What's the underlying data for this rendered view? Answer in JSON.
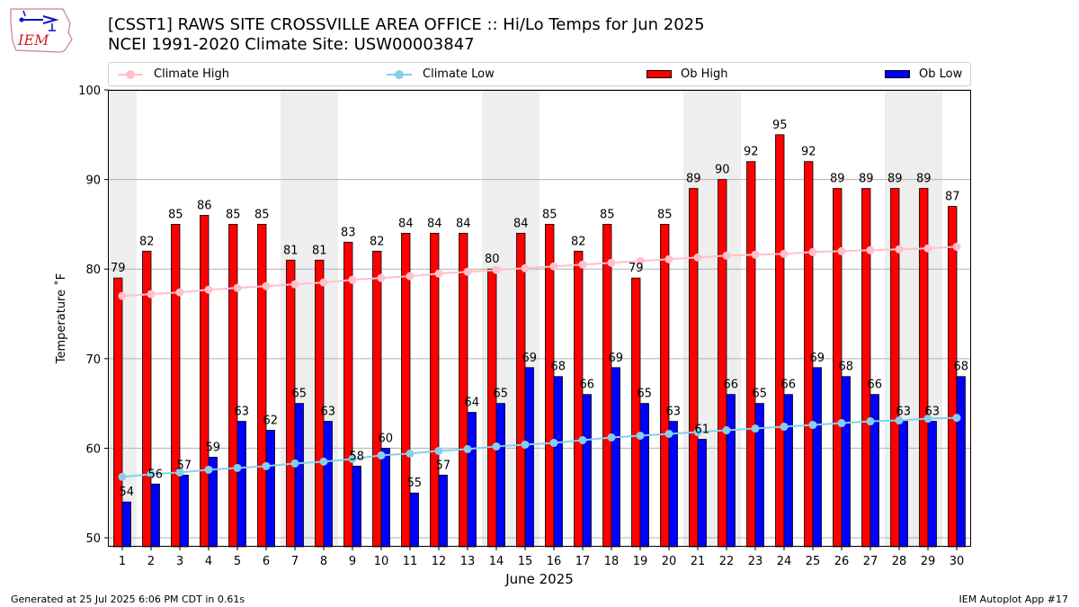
{
  "header": {
    "title_line1": "[CSST1] RAWS SITE  CROSSVILLE AREA OFFICE :: Hi/Lo Temps for Jun 2025",
    "title_line2": "NCEI 1991-2020 Climate Site: USW00003847",
    "logo_text": "IEM"
  },
  "footer": {
    "left": "Generated at 25 Jul 2025 6:06 PM CDT in 0.61s",
    "right": "IEM Autoplot App #17"
  },
  "legend": {
    "climate_high": "Climate High",
    "climate_low": "Climate Low",
    "ob_high": "Ob High",
    "ob_low": "Ob Low"
  },
  "colors": {
    "ob_high": "#ff0000",
    "ob_low": "#0000ff",
    "climate_high": "#ffc0cb",
    "climate_low": "#87ceeb",
    "weekend_band": "#eeeeee",
    "grid": "#b0b0b0"
  },
  "chart_data": {
    "type": "bar",
    "title": "[CSST1] RAWS SITE  CROSSVILLE AREA OFFICE :: Hi/Lo Temps for Jun 2025",
    "subtitle": "NCEI 1991-2020 Climate Site: USW00003847",
    "xlabel": "June 2025",
    "ylabel": "Temperature ˚F",
    "ylim": [
      49,
      100
    ],
    "yticks": [
      50,
      60,
      70,
      80,
      90,
      100
    ],
    "grid": "horizontal",
    "legend_position": "top",
    "categories": [
      "1",
      "2",
      "3",
      "4",
      "5",
      "6",
      "7",
      "8",
      "9",
      "10",
      "11",
      "12",
      "13",
      "14",
      "15",
      "16",
      "17",
      "18",
      "19",
      "20",
      "21",
      "22",
      "23",
      "24",
      "25",
      "26",
      "27",
      "28",
      "29",
      "30"
    ],
    "shaded_days": [
      1,
      7,
      8,
      14,
      15,
      21,
      22,
      28,
      29
    ],
    "series": [
      {
        "name": "Ob High",
        "kind": "bar",
        "values": [
          79,
          82,
          85,
          86,
          85,
          85,
          81,
          81,
          83,
          82,
          84,
          84,
          84,
          80,
          84,
          85,
          82,
          85,
          79,
          85,
          89,
          90,
          92,
          95,
          92,
          89,
          89,
          89,
          89,
          87
        ]
      },
      {
        "name": "Ob Low",
        "kind": "bar",
        "values": [
          54,
          56,
          57,
          59,
          63,
          62,
          65,
          63,
          58,
          60,
          55,
          57,
          64,
          65,
          69,
          68,
          66,
          69,
          65,
          63,
          61,
          66,
          65,
          66,
          69,
          68,
          66,
          63,
          63,
          68
        ]
      },
      {
        "name": "Climate High",
        "kind": "line",
        "values": [
          77.0,
          77.2,
          77.4,
          77.7,
          77.9,
          78.1,
          78.3,
          78.5,
          78.8,
          79.0,
          79.2,
          79.5,
          79.7,
          79.9,
          80.1,
          80.3,
          80.5,
          80.7,
          80.9,
          81.1,
          81.3,
          81.5,
          81.6,
          81.7,
          81.9,
          82.0,
          82.1,
          82.2,
          82.3,
          82.5
        ]
      },
      {
        "name": "Climate Low",
        "kind": "line",
        "values": [
          56.8,
          57.1,
          57.3,
          57.6,
          57.8,
          58.0,
          58.3,
          58.5,
          58.8,
          59.2,
          59.4,
          59.7,
          59.9,
          60.2,
          60.4,
          60.6,
          60.9,
          61.2,
          61.4,
          61.6,
          61.8,
          62.0,
          62.2,
          62.4,
          62.6,
          62.8,
          63.0,
          63.1,
          63.3,
          63.4
        ]
      }
    ]
  }
}
